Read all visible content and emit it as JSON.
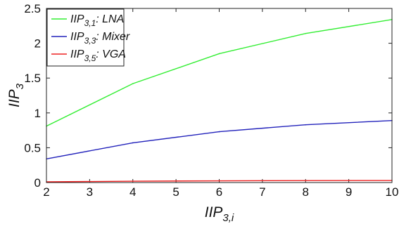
{
  "chart_data": {
    "type": "line",
    "x": [
      2,
      4,
      6,
      8,
      10
    ],
    "xlim": [
      2,
      10
    ],
    "ylim": [
      0,
      2.5
    ],
    "xticks": [
      "2",
      "3",
      "4",
      "5",
      "6",
      "7",
      "8",
      "9",
      "10"
    ],
    "yticks": [
      "0",
      "0.5",
      "1",
      "1.5",
      "2",
      "2.5"
    ],
    "xlabel": {
      "base": "IIP",
      "sub": "3,i"
    },
    "ylabel": {
      "base": "IIP",
      "sub": "3"
    },
    "grid": false,
    "legend_position": "top-left",
    "series": [
      {
        "name_base": "IIP",
        "name_sub": "3,1",
        "name_suffix": ": LNA",
        "color": "#33ee33",
        "values": [
          0.81,
          1.42,
          1.85,
          2.14,
          2.34
        ]
      },
      {
        "name_base": "IIP",
        "name_sub": "3,3",
        "name_suffix": ": Mixer",
        "color": "#2222bb",
        "values": [
          0.34,
          0.57,
          0.73,
          0.83,
          0.89
        ]
      },
      {
        "name_base": "IIP",
        "name_sub": "3,5",
        "name_suffix": ": VGA",
        "color": "#ee2222",
        "values": [
          0.01,
          0.02,
          0.025,
          0.028,
          0.03
        ]
      }
    ]
  }
}
